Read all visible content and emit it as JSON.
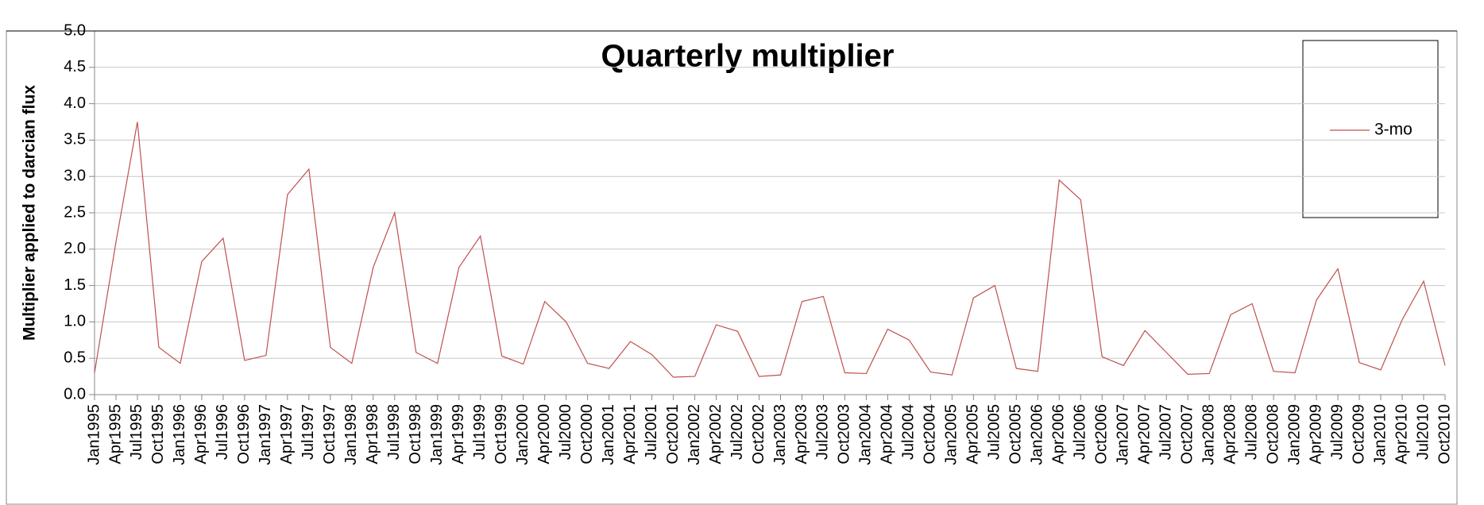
{
  "chart_data": {
    "type": "line",
    "title": "Quarterly multiplier",
    "y_label": "Multiplier applied to darcian flux",
    "categories": [
      "Jan1995",
      "Apr1995",
      "Jul1995",
      "Oct1995",
      "Jan1996",
      "Apr1996",
      "Jul1996",
      "Oct1996",
      "Jan1997",
      "Apr1997",
      "Jul1997",
      "Oct1997",
      "Jan1998",
      "Apr1998",
      "Jul1998",
      "Oct1998",
      "Jan1999",
      "Apr1999",
      "Jul1999",
      "Oct1999",
      "Jan2000",
      "Apr2000",
      "Jul2000",
      "Oct2000",
      "Jan2001",
      "Apr2001",
      "Jul2001",
      "Oct2001",
      "Jan2002",
      "Apr2002",
      "Jul2002",
      "Oct2002",
      "Jan2003",
      "Apr2003",
      "Jul2003",
      "Oct2003",
      "Jan2004",
      "Apr2004",
      "Jul2004",
      "Oct2004",
      "Jan2005",
      "Apr2005",
      "Jul2005",
      "Oct2005",
      "Jan2006",
      "Apr2006",
      "Jul2006",
      "Oct2006",
      "Jan2007",
      "Apr2007",
      "Jul2007",
      "Oct2007",
      "Jan2008",
      "Apr2008",
      "Jul2008",
      "Oct2008",
      "Jan2009",
      "Apr2009",
      "Jul2009",
      "Oct2009",
      "Jan2010",
      "Apr2010",
      "Jul2010",
      "Oct2010"
    ],
    "series": [
      {
        "name": "3-mo",
        "color": "#c0504d",
        "values": [
          0.3,
          2.1,
          3.75,
          0.65,
          0.43,
          1.83,
          2.15,
          0.47,
          0.54,
          2.75,
          3.1,
          0.65,
          0.43,
          1.75,
          2.5,
          0.58,
          0.43,
          1.75,
          2.18,
          0.53,
          0.42,
          1.28,
          1.0,
          0.43,
          0.36,
          0.73,
          0.55,
          0.24,
          0.25,
          0.96,
          0.87,
          0.25,
          0.27,
          1.28,
          1.35,
          0.3,
          0.29,
          0.9,
          0.75,
          0.31,
          0.27,
          1.33,
          1.5,
          0.36,
          0.32,
          2.95,
          2.68,
          0.52,
          0.4,
          0.88,
          0.58,
          0.28,
          0.29,
          1.1,
          1.25,
          0.32,
          0.3,
          1.3,
          1.73,
          0.44,
          0.34,
          1.03,
          1.56,
          0.4
        ]
      }
    ],
    "ylim": [
      0,
      5
    ],
    "yticks": [
      {
        "value": 0,
        "label": "0.0"
      },
      {
        "value": 0.5,
        "label": "0.5"
      },
      {
        "value": 1,
        "label": "1.0"
      },
      {
        "value": 1.5,
        "label": "1.5"
      },
      {
        "value": 2,
        "label": "2.0"
      },
      {
        "value": 2.5,
        "label": "2.5"
      },
      {
        "value": 3,
        "label": "3.0"
      },
      {
        "value": 3.5,
        "label": "3.5"
      },
      {
        "value": 4,
        "label": "4.0"
      },
      {
        "value": 4.5,
        "label": "4.5"
      },
      {
        "value": 5,
        "label": "5.0"
      }
    ],
    "grid": true,
    "legend": "right"
  }
}
